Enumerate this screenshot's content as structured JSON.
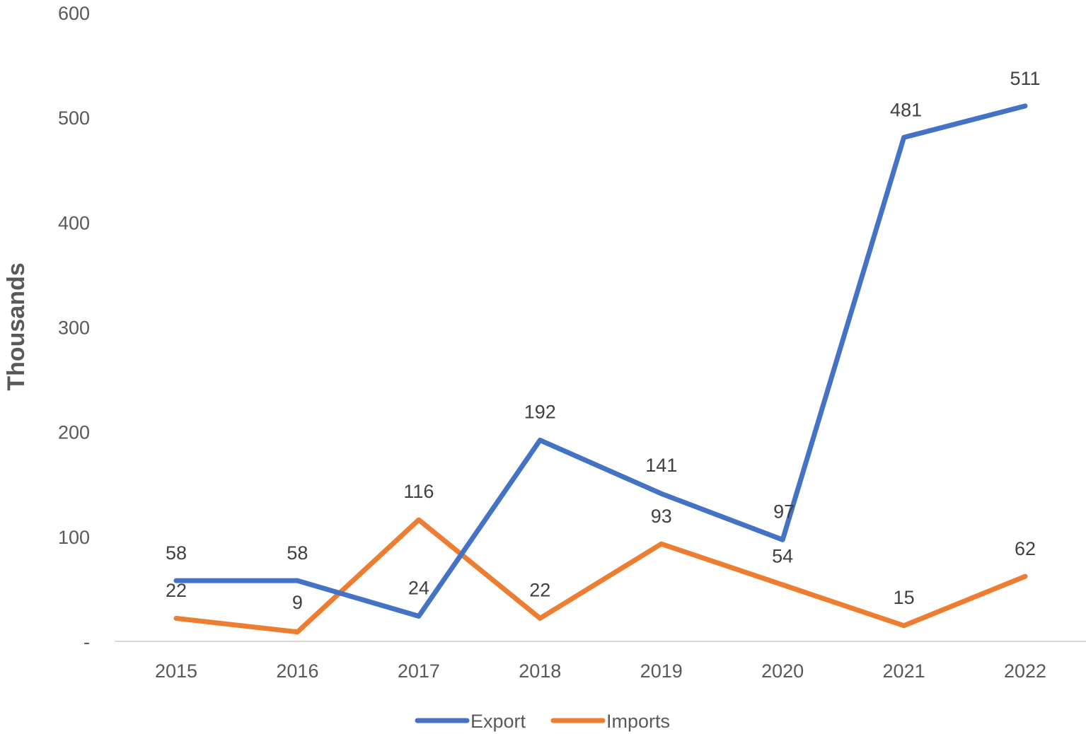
{
  "chart_data": {
    "type": "line",
    "title": "",
    "xlabel": "",
    "ylabel": "Thousands",
    "categories": [
      "2015",
      "2016",
      "2017",
      "2018",
      "2019",
      "2020",
      "2021",
      "2022"
    ],
    "ylim": [
      0,
      600
    ],
    "yticks": [
      {
        "value": 0,
        "label": "-"
      },
      {
        "value": 100,
        "label": "100"
      },
      {
        "value": 200,
        "label": "200"
      },
      {
        "value": 300,
        "label": "300"
      },
      {
        "value": 400,
        "label": "400"
      },
      {
        "value": 500,
        "label": "500"
      },
      {
        "value": 600,
        "label": "600"
      }
    ],
    "grid": false,
    "legend_position": "bottom",
    "series": [
      {
        "name": "Export",
        "color": "#4472C4",
        "values": [
          58,
          58,
          24,
          192,
          141,
          97,
          481,
          511
        ],
        "labels": [
          "58",
          "58",
          "24",
          "192",
          "141",
          "97",
          "481",
          "511"
        ]
      },
      {
        "name": "Imports",
        "color": "#ED7D31",
        "values": [
          22,
          9,
          116,
          22,
          93,
          54,
          15,
          62
        ],
        "labels": [
          "22",
          "9",
          "116",
          "22",
          "93",
          "54",
          "15",
          "62"
        ]
      }
    ]
  }
}
